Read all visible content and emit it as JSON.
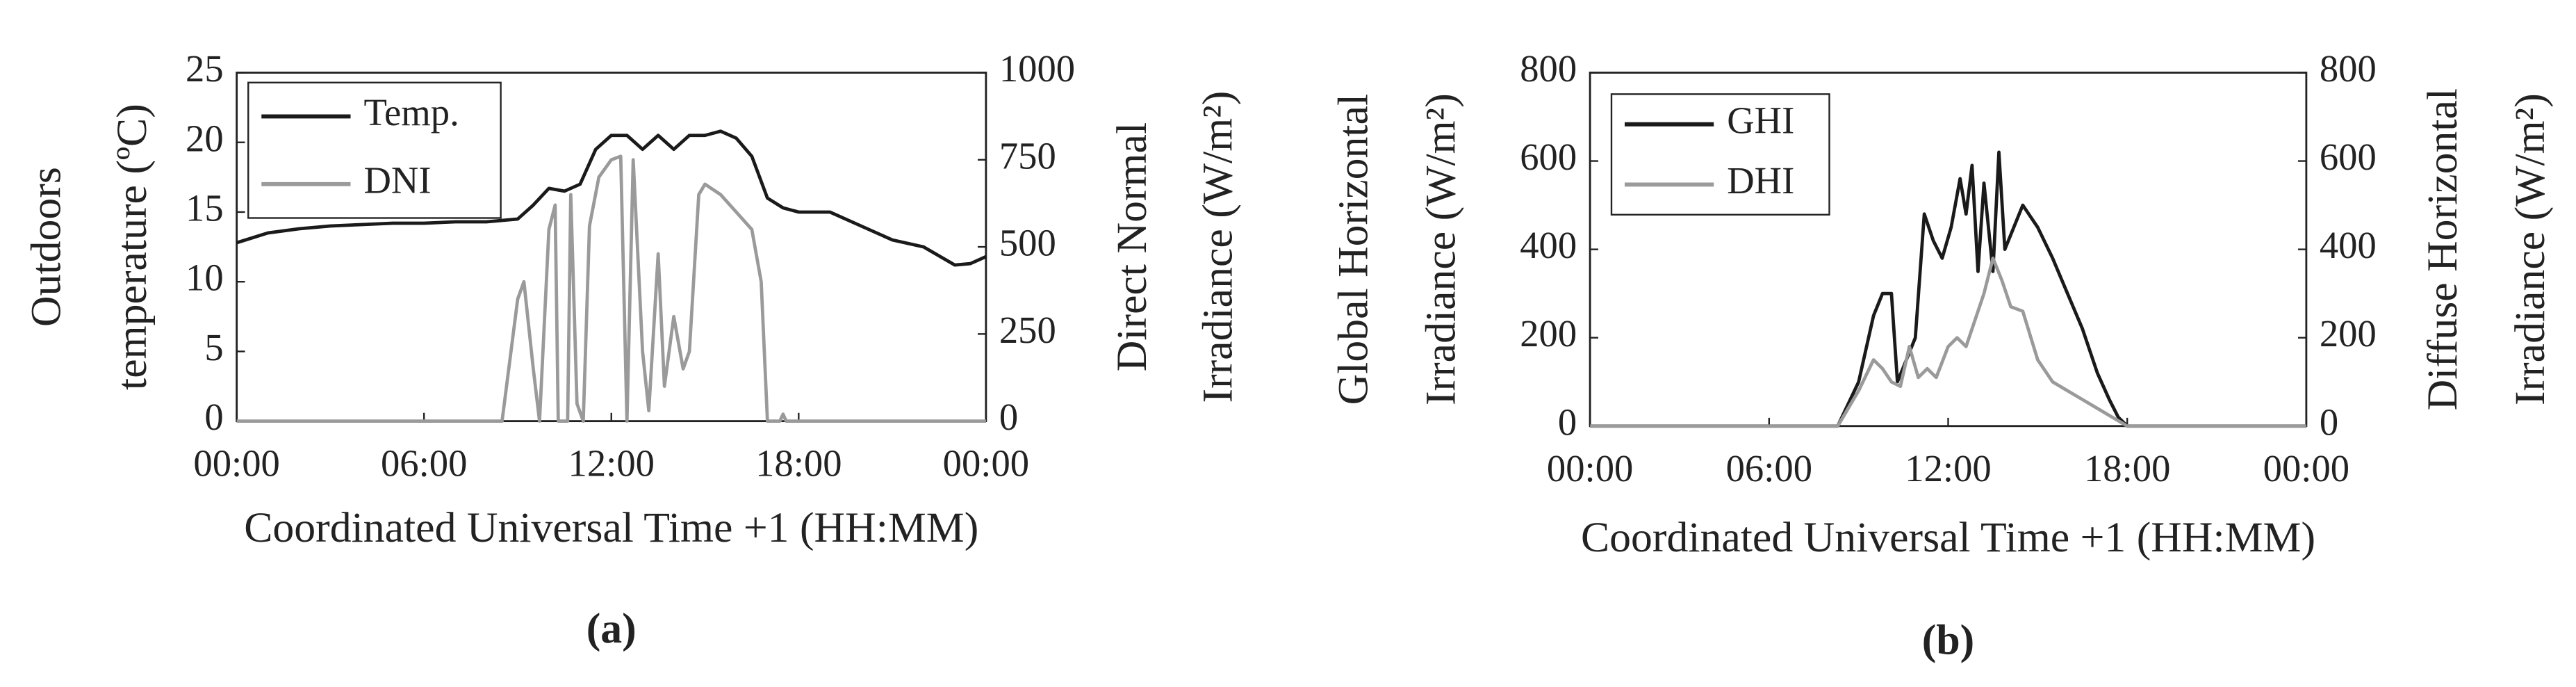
{
  "chart_data": [
    {
      "type": "line",
      "panel_label": "(a)",
      "xlabel": "Coordinated Universal Time +1 (HH:MM)",
      "ylabel": [
        "Outdoors",
        "temperature (ºC)"
      ],
      "y2label": [
        "Direct Normal",
        "Irradiance (W/m²)"
      ],
      "xlim": [
        0,
        24
      ],
      "xticks": [
        {
          "value": 0,
          "label": "00:00"
        },
        {
          "value": 6,
          "label": "06:00"
        },
        {
          "value": 12,
          "label": "12:00"
        },
        {
          "value": 18,
          "label": "18:00"
        },
        {
          "value": 24,
          "label": "00:00"
        }
      ],
      "ylim": [
        0,
        25
      ],
      "yticks": [
        0,
        5,
        10,
        15,
        20,
        25
      ],
      "y2lim": [
        0,
        1000
      ],
      "y2ticks": [
        0,
        250,
        500,
        750,
        1000
      ],
      "legend": "upper left",
      "series": [
        {
          "name": "Temp.",
          "color": "#1a1a1a",
          "x": [
            0,
            1,
            2,
            3,
            4,
            5,
            6,
            7,
            8,
            9,
            9.5,
            10,
            10.5,
            11,
            11.5,
            12,
            12.5,
            13,
            13.5,
            14,
            14.5,
            15,
            15.5,
            16,
            16.5,
            17,
            17.5,
            18,
            19,
            20,
            21,
            22,
            23,
            23.5,
            24
          ],
          "values": [
            12.8,
            13.5,
            13.8,
            14,
            14.1,
            14.2,
            14.2,
            14.3,
            14.3,
            14.5,
            15.5,
            16.7,
            16.5,
            17,
            19.5,
            20.5,
            20.5,
            19.5,
            20.5,
            19.5,
            20.5,
            20.5,
            20.8,
            20.3,
            19,
            16,
            15.3,
            15,
            15,
            14,
            13,
            12.5,
            11.2,
            11.3,
            11.8
          ]
        },
        {
          "name": "DNI",
          "color": "#9a9a9a",
          "axis": "y2",
          "x": [
            0,
            8.5,
            9.0,
            9.2,
            9.5,
            9.7,
            10.0,
            10.2,
            10.3,
            10.6,
            10.7,
            10.9,
            11.1,
            11.3,
            11.6,
            12.0,
            12.3,
            12.5,
            12.7,
            13.0,
            13.2,
            13.5,
            13.7,
            14.0,
            14.3,
            14.5,
            14.8,
            15.0,
            15.5,
            16.0,
            16.5,
            16.8,
            17.0,
            17.4,
            17.5,
            17.6,
            24
          ],
          "values": [
            0,
            0,
            350,
            400,
            150,
            0,
            550,
            620,
            0,
            0,
            650,
            50,
            0,
            560,
            700,
            750,
            760,
            0,
            750,
            200,
            30,
            480,
            100,
            300,
            150,
            200,
            650,
            680,
            650,
            600,
            550,
            400,
            0,
            0,
            20,
            0,
            0
          ]
        }
      ]
    },
    {
      "type": "line",
      "panel_label": "(b)",
      "xlabel": "Coordinated Universal Time +1 (HH:MM)",
      "ylabel": [
        "Global Horizontal",
        "Irradiance (W/m²)"
      ],
      "y2label": [
        "Diffuse Horizontal",
        "Irradiance (W/m²)"
      ],
      "xlim": [
        0,
        24
      ],
      "xticks": [
        {
          "value": 0,
          "label": "00:00"
        },
        {
          "value": 6,
          "label": "06:00"
        },
        {
          "value": 12,
          "label": "12:00"
        },
        {
          "value": 18,
          "label": "18:00"
        },
        {
          "value": 24,
          "label": "00:00"
        }
      ],
      "ylim": [
        0,
        800
      ],
      "yticks": [
        0,
        200,
        400,
        600,
        800
      ],
      "y2lim": [
        0,
        800
      ],
      "y2ticks": [
        0,
        200,
        400,
        600,
        800
      ],
      "legend": "upper left",
      "series": [
        {
          "name": "GHI",
          "color": "#1a1a1a",
          "x": [
            0,
            8.3,
            9,
            9.5,
            9.8,
            10.1,
            10.3,
            10.6,
            10.9,
            11.2,
            11.5,
            11.8,
            12.1,
            12.4,
            12.6,
            12.8,
            13.0,
            13.2,
            13.5,
            13.7,
            13.9,
            14.2,
            14.5,
            15.0,
            15.5,
            16.0,
            16.5,
            17.0,
            17.4,
            17.7,
            18.0,
            24
          ],
          "values": [
            0,
            0,
            100,
            250,
            300,
            300,
            100,
            150,
            200,
            480,
            420,
            380,
            450,
            560,
            480,
            590,
            350,
            550,
            350,
            620,
            400,
            450,
            500,
            450,
            380,
            300,
            220,
            120,
            60,
            20,
            0,
            0
          ]
        },
        {
          "name": "DHI",
          "color": "#9a9a9a",
          "x": [
            0,
            8.3,
            9,
            9.5,
            9.8,
            10.1,
            10.4,
            10.7,
            11.0,
            11.3,
            11.6,
            12.0,
            12.3,
            12.6,
            12.9,
            13.2,
            13.5,
            13.8,
            14.1,
            14.5,
            15.0,
            15.5,
            16.0,
            16.5,
            17.0,
            17.5,
            18.0,
            24
          ],
          "values": [
            0,
            0,
            80,
            150,
            130,
            100,
            90,
            180,
            110,
            130,
            110,
            180,
            200,
            180,
            240,
            300,
            380,
            330,
            270,
            260,
            150,
            100,
            80,
            60,
            40,
            20,
            0,
            0
          ]
        }
      ]
    }
  ]
}
